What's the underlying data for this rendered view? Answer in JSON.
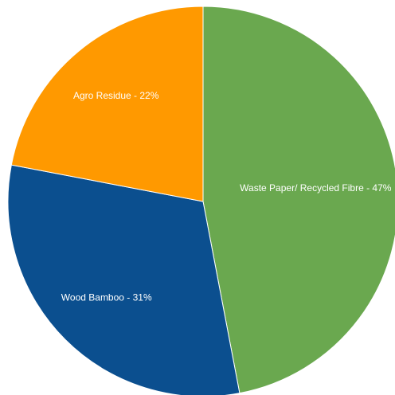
{
  "chart_data": {
    "type": "pie",
    "labels": [
      "Waste Paper/ Recycled Fibre - 47%",
      "Wood Bamboo - 31%",
      "Agro Residue - 22%"
    ],
    "values": [
      47,
      31,
      22
    ],
    "colors": [
      "#6aa84f",
      "#0b4f8f",
      "#ff9900"
    ]
  }
}
